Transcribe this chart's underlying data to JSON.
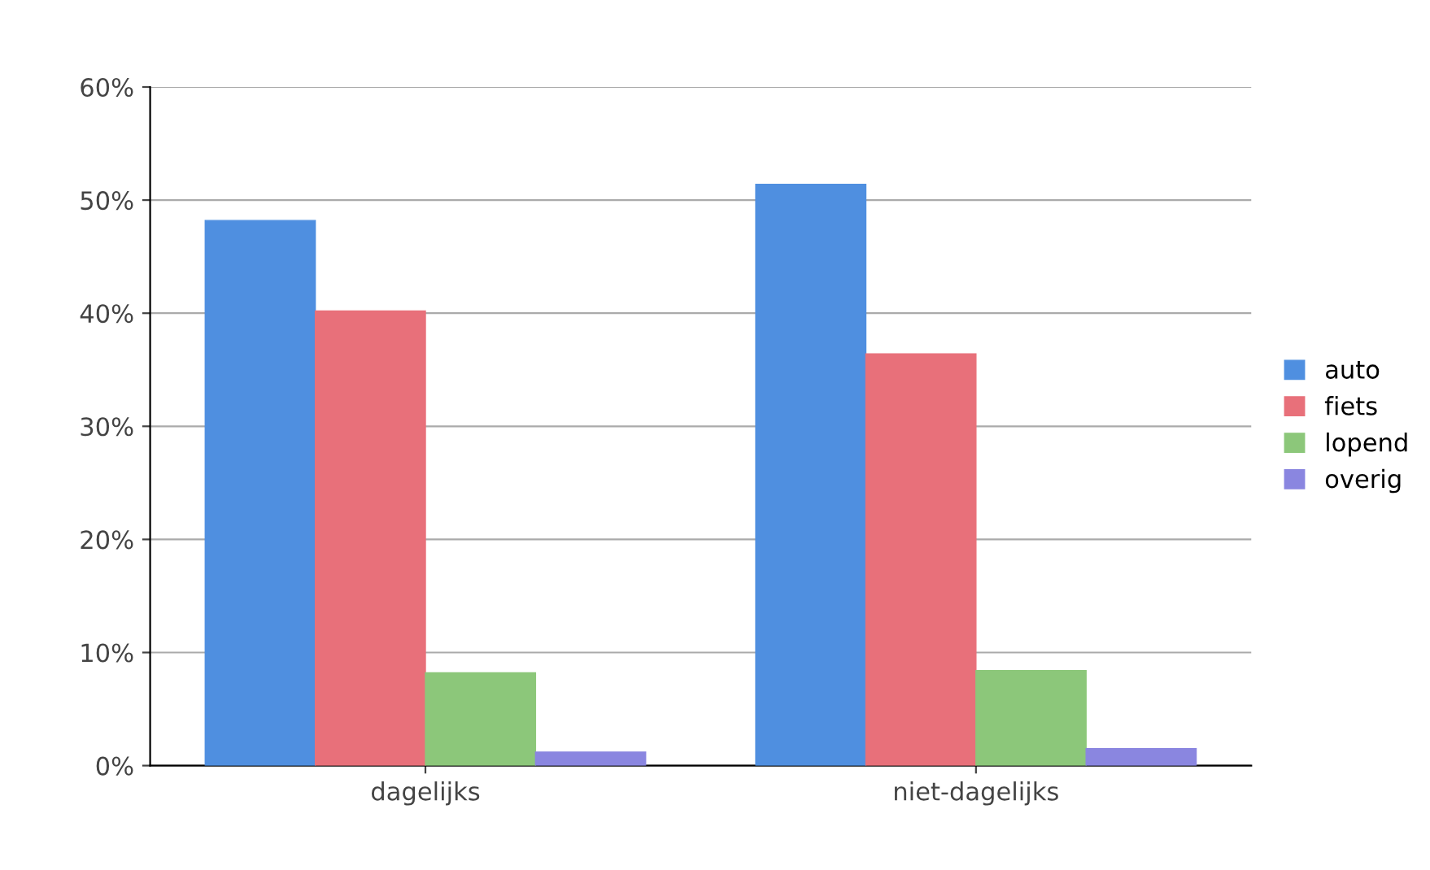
{
  "chart_data": {
    "type": "bar",
    "categories": [
      "dagelijks",
      "niet-dagelijks"
    ],
    "series": [
      {
        "name": "auto",
        "color": "#4f8fe0",
        "values": [
          48.2,
          51.4
        ]
      },
      {
        "name": "fiets",
        "color": "#e8707a",
        "values": [
          40.2,
          36.4
        ]
      },
      {
        "name": "lopend",
        "color": "#8cc77a",
        "values": [
          8.2,
          8.4
        ]
      },
      {
        "name": "overig",
        "color": "#8a86e0",
        "values": [
          1.2,
          1.5
        ]
      }
    ],
    "ylim": [
      0,
      60
    ],
    "yticks": [
      {
        "value": 0,
        "label": "0%"
      },
      {
        "value": 10,
        "label": "10%"
      },
      {
        "value": 20,
        "label": "20%"
      },
      {
        "value": 30,
        "label": "30%"
      },
      {
        "value": 40,
        "label": "40%"
      },
      {
        "value": 50,
        "label": "50%"
      },
      {
        "value": 60,
        "label": "60%"
      }
    ],
    "grid": "y",
    "legend": "right"
  }
}
